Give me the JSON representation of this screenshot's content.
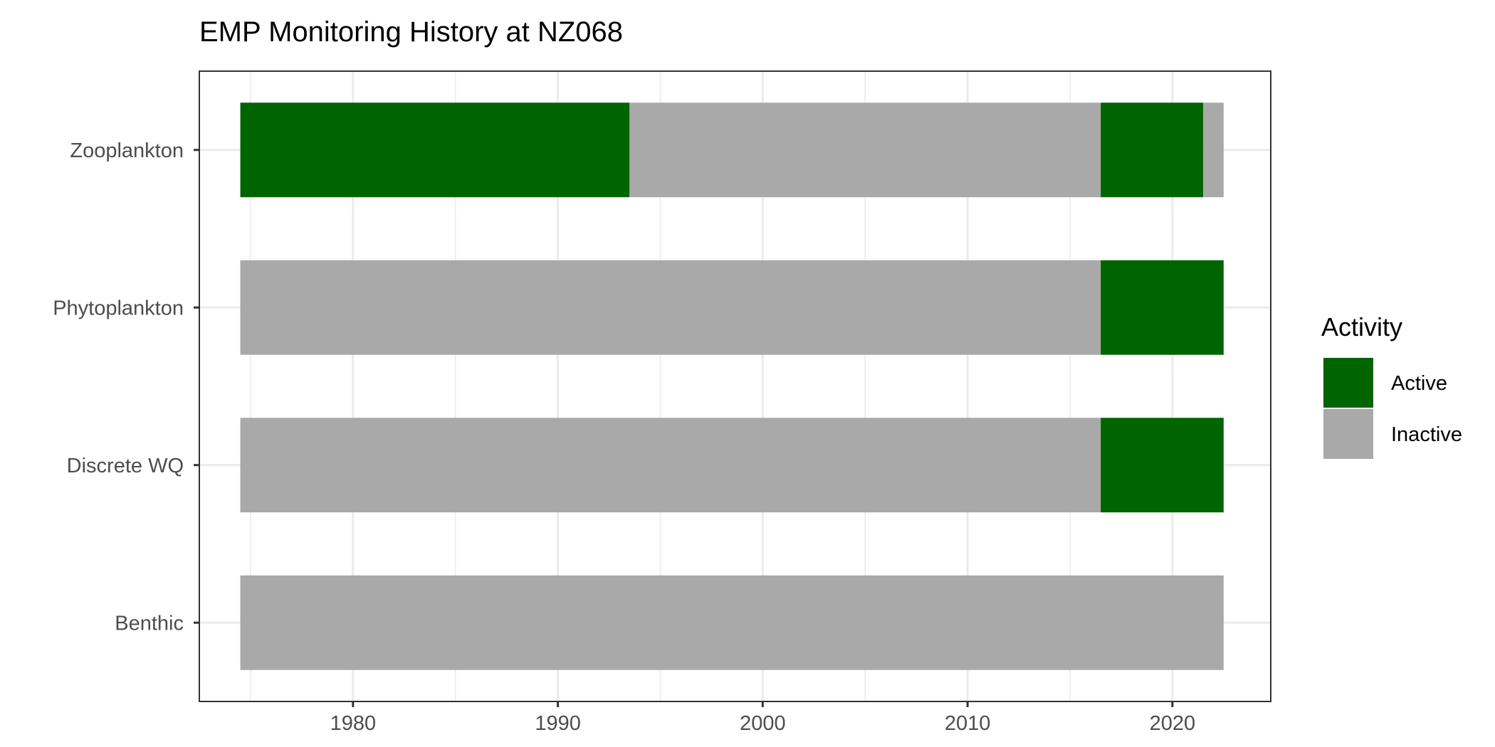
{
  "chart_data": {
    "type": "bar",
    "orientation": "horizontal",
    "stacked_timeline": true,
    "title": "EMP Monitoring History at NZ068",
    "xlabel": "",
    "ylabel": "",
    "xlim": [
      1972.5,
      2024.8
    ],
    "xticks": [
      1980,
      1990,
      2000,
      2010,
      2020
    ],
    "x_tick_labels": [
      "1980",
      "1990",
      "2000",
      "2010",
      "2020"
    ],
    "categories": [
      "Zooplankton",
      "Phytoplankton",
      "Discrete WQ",
      "Benthic"
    ],
    "segments": [
      {
        "category": "Zooplankton",
        "start": 1974.5,
        "end": 1993.5,
        "status": "Active"
      },
      {
        "category": "Zooplankton",
        "start": 1993.5,
        "end": 2016.5,
        "status": "Inactive"
      },
      {
        "category": "Zooplankton",
        "start": 2016.5,
        "end": 2021.5,
        "status": "Active"
      },
      {
        "category": "Zooplankton",
        "start": 2021.5,
        "end": 2022.5,
        "status": "Inactive"
      },
      {
        "category": "Phytoplankton",
        "start": 1974.5,
        "end": 2016.5,
        "status": "Inactive"
      },
      {
        "category": "Phytoplankton",
        "start": 2016.5,
        "end": 2022.5,
        "status": "Active"
      },
      {
        "category": "Discrete WQ",
        "start": 1974.5,
        "end": 2016.5,
        "status": "Inactive"
      },
      {
        "category": "Discrete WQ",
        "start": 2016.5,
        "end": 2022.5,
        "status": "Active"
      },
      {
        "category": "Benthic",
        "start": 1974.5,
        "end": 2022.5,
        "status": "Inactive"
      }
    ],
    "legend": {
      "title": "Activity",
      "position": "right",
      "items": [
        {
          "label": "Active",
          "color": "#006400"
        },
        {
          "label": "Inactive",
          "color": "#A9A9A9"
        }
      ]
    },
    "grid": true,
    "colors": {
      "Active": "#006400",
      "Inactive": "#A9A9A9"
    }
  }
}
